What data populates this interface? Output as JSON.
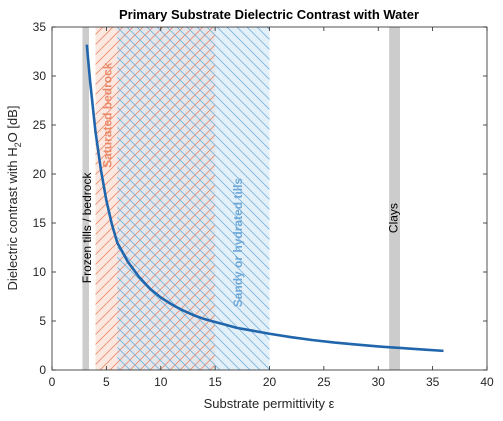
{
  "chart_data": {
    "type": "line",
    "title": "Primary Substrate Dielectric Contrast with Water",
    "xlabel": "Substrate permittivity ε",
    "ylabel_main": "Dielectric contrast with H",
    "ylabel_sub": "2",
    "ylabel_tail": "O [dB]",
    "xlim": [
      0,
      40
    ],
    "ylim": [
      0,
      35
    ],
    "xticks": [
      0,
      5,
      10,
      15,
      20,
      25,
      30,
      35,
      40
    ],
    "yticks": [
      0,
      5,
      10,
      15,
      20,
      25,
      30,
      35
    ],
    "grid": false,
    "series": [
      {
        "color": "#2166ac",
        "x": [
          3.2,
          3.5,
          4,
          4.5,
          5,
          5.5,
          6,
          7,
          8,
          9,
          10,
          11,
          12,
          13,
          14,
          15,
          16,
          17,
          18,
          20,
          22,
          24,
          26,
          28,
          30,
          32,
          34,
          36
        ],
        "y": [
          33.2,
          29.5,
          24.3,
          20.4,
          17.3,
          14.9,
          13.0,
          11.0,
          9.5,
          8.3,
          7.4,
          6.7,
          6.1,
          5.6,
          5.2,
          4.9,
          4.6,
          4.3,
          4.1,
          3.7,
          3.35,
          3.05,
          2.8,
          2.6,
          2.4,
          2.25,
          2.1,
          1.95
        ]
      }
    ],
    "regions": [
      {
        "label": "Frozen tills / bedrock",
        "x": [
          2.8,
          3.4
        ],
        "fill": "#cccccc",
        "hatch": "none",
        "label_color": "#000000",
        "label_x": 3.3,
        "label_y": 14.5
      },
      {
        "label": "Saturated bedrock",
        "x": [
          4,
          15
        ],
        "fill": "#fbd5c8",
        "hatch": "#e98b6b",
        "label_color": "#e98b6b",
        "label_x": 5.2,
        "label_y": 26
      },
      {
        "label": "Sandy or hydrated tills",
        "x": [
          6,
          20
        ],
        "fill": "#cde3f2",
        "hatch": "#7ab3dd",
        "label_color": "#6ea8d8",
        "label_x": 17.2,
        "label_y": 13
      },
      {
        "label": "Clays",
        "x": [
          31,
          32
        ],
        "fill": "#cccccc",
        "hatch": "none",
        "label_color": "#000000",
        "label_x": 31.5,
        "label_y": 15.5
      }
    ]
  }
}
